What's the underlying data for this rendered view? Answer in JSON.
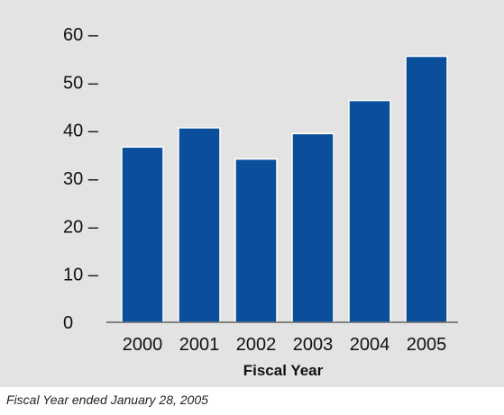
{
  "colors": {
    "panel_background": "#e3e3e3",
    "bar_fill": "#0b4f9c",
    "axis": "#222222",
    "text": "#111111"
  },
  "chart_data": {
    "type": "bar",
    "categories": [
      "2000",
      "2001",
      "2002",
      "2003",
      "2004",
      "2005"
    ],
    "values": [
      36.5,
      40.5,
      34,
      39.3,
      46.2,
      55.4
    ],
    "xlabel": "Fiscal Year",
    "ylabel": "",
    "ylim": [
      0,
      60
    ],
    "yticks": [
      0,
      10,
      20,
      30,
      40,
      50,
      60
    ],
    "ytick_labels": [
      "0",
      "10 –",
      "20 –",
      "30 –",
      "40 –",
      "50 –",
      "60 –"
    ],
    "grid": false,
    "legend": "none"
  },
  "footnote": "Fiscal Year ended January 28, 2005"
}
